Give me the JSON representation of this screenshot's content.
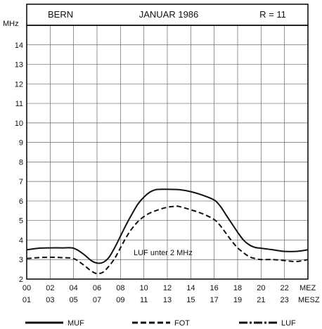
{
  "header": {
    "station": "BERN",
    "month": "JANUAR 1986",
    "sunspot": "R = 11"
  },
  "chart_data": {
    "type": "line",
    "ylabel": "MHz",
    "ylim": [
      2,
      15
    ],
    "yticks": [
      "2",
      "3",
      "4",
      "5",
      "6",
      "7",
      "8",
      "9",
      "10",
      "11",
      "12",
      "13",
      "14"
    ],
    "xlim": [
      0,
      24
    ],
    "xticks_top": [
      "00",
      "02",
      "04",
      "06",
      "08",
      "10",
      "12",
      "14",
      "16",
      "18",
      "20",
      "22"
    ],
    "xticks_bottom": [
      "01",
      "03",
      "05",
      "07",
      "09",
      "11",
      "13",
      "15",
      "17",
      "19",
      "21",
      "23"
    ],
    "xunit_top": "MEZ",
    "xunit_bottom": "MESZ",
    "grid": true,
    "annotation": "LUF unter 2 MHz",
    "series": [
      {
        "name": "MUF",
        "style": "solid",
        "x": [
          0,
          1,
          2,
          3,
          4,
          4.8,
          5.5,
          6,
          6.5,
          7,
          7.5,
          8,
          8.5,
          9,
          9.5,
          10,
          10.5,
          11,
          11.5,
          12,
          13,
          14,
          15,
          16,
          16.5,
          17,
          17.5,
          18,
          18.5,
          19,
          19.5,
          20,
          21,
          22,
          23,
          24
        ],
        "y": [
          3.5,
          3.58,
          3.6,
          3.6,
          3.58,
          3.3,
          2.95,
          2.82,
          2.85,
          3.1,
          3.6,
          4.2,
          4.8,
          5.35,
          5.85,
          6.2,
          6.45,
          6.58,
          6.6,
          6.6,
          6.58,
          6.48,
          6.3,
          6.05,
          5.75,
          5.3,
          4.85,
          4.4,
          4.0,
          3.75,
          3.62,
          3.58,
          3.5,
          3.42,
          3.42,
          3.5
        ]
      },
      {
        "name": "FOT",
        "style": "dashed",
        "x": [
          0,
          1,
          2,
          3,
          4,
          4.8,
          5.5,
          6,
          6.5,
          7,
          7.5,
          8,
          8.5,
          9,
          9.5,
          10,
          10.5,
          11,
          11.5,
          12,
          12.5,
          13,
          14,
          15,
          16,
          16.5,
          17,
          17.5,
          18,
          18.5,
          19,
          19.5,
          20,
          21,
          22,
          23,
          24
        ],
        "y": [
          3.05,
          3.1,
          3.12,
          3.1,
          3.05,
          2.75,
          2.42,
          2.28,
          2.35,
          2.65,
          3.05,
          3.6,
          4.15,
          4.6,
          4.95,
          5.2,
          5.38,
          5.5,
          5.6,
          5.68,
          5.72,
          5.72,
          5.55,
          5.35,
          5.05,
          4.75,
          4.35,
          3.95,
          3.6,
          3.35,
          3.15,
          3.05,
          3.0,
          3.0,
          2.95,
          2.9,
          3.0
        ]
      }
    ],
    "legend": [
      {
        "name": "MUF",
        "style": "solid"
      },
      {
        "name": "FOT",
        "style": "dashed"
      },
      {
        "name": "LUF",
        "style": "dashdot"
      }
    ]
  }
}
